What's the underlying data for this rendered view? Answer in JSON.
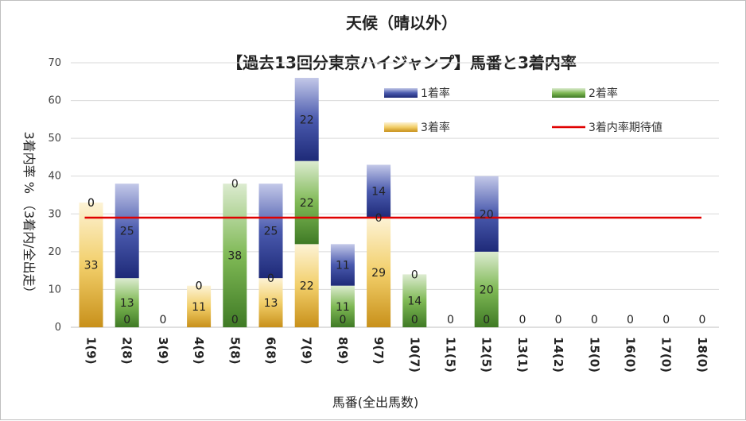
{
  "chart_data": {
    "type": "bar",
    "stacked": true,
    "title_line1": "天候（晴以外）",
    "title_line2": "【過去13回分東京ハイジャンプ】馬番と3着内率",
    "xlabel": "馬番(全出馬数)",
    "ylabel": "3着内率 %  （3着内/全出走）",
    "ylim": [
      0,
      70
    ],
    "yticks": [
      0,
      10,
      20,
      30,
      40,
      50,
      60,
      70
    ],
    "categories": [
      "1(9)",
      "2(8)",
      "3(9)",
      "4(9)",
      "5(8)",
      "6(8)",
      "7(9)",
      "8(9)",
      "9(7)",
      "10(7)",
      "11(5)",
      "12(5)",
      "13(1)",
      "14(2)",
      "15(0)",
      "16(0)",
      "17(0)",
      "18(0)"
    ],
    "series": [
      {
        "name": "3着率",
        "color": "#d9a520",
        "values": [
          33,
          0,
          0,
          11,
          0,
          13,
          22,
          0,
          29,
          0,
          0,
          0,
          0,
          0,
          0,
          0,
          0,
          0
        ],
        "labels": [
          "33",
          "0",
          "0",
          "11",
          "0",
          "13",
          "22",
          "0",
          "29",
          "0",
          "0",
          "0",
          "0",
          "0",
          "0",
          "0",
          "0",
          "0"
        ]
      },
      {
        "name": "2着率",
        "color": "#5a9a3a",
        "values": [
          0,
          13,
          0,
          0,
          38,
          0,
          22,
          11,
          0,
          14,
          0,
          20,
          0,
          0,
          0,
          0,
          0,
          0
        ],
        "labels": [
          "0",
          "13",
          "",
          "0",
          "38",
          "0",
          "22",
          "11",
          "0",
          "14",
          "",
          "20",
          "",
          "",
          "",
          "",
          "",
          ""
        ]
      },
      {
        "name": "1着率",
        "color": "#2a3a8c",
        "values": [
          0,
          25,
          0,
          0,
          0,
          25,
          22,
          11,
          14,
          0,
          0,
          20,
          0,
          0,
          0,
          0,
          0,
          0
        ],
        "labels": [
          "0",
          "25",
          "",
          "0",
          "0",
          "25",
          "22",
          "11",
          "14",
          "0",
          "",
          "20",
          "",
          "",
          "",
          "",
          "",
          ""
        ]
      }
    ],
    "expected_line": {
      "name": "3着内率期待値",
      "value": 29,
      "color": "#e00000"
    },
    "legend_position": "top-right"
  }
}
